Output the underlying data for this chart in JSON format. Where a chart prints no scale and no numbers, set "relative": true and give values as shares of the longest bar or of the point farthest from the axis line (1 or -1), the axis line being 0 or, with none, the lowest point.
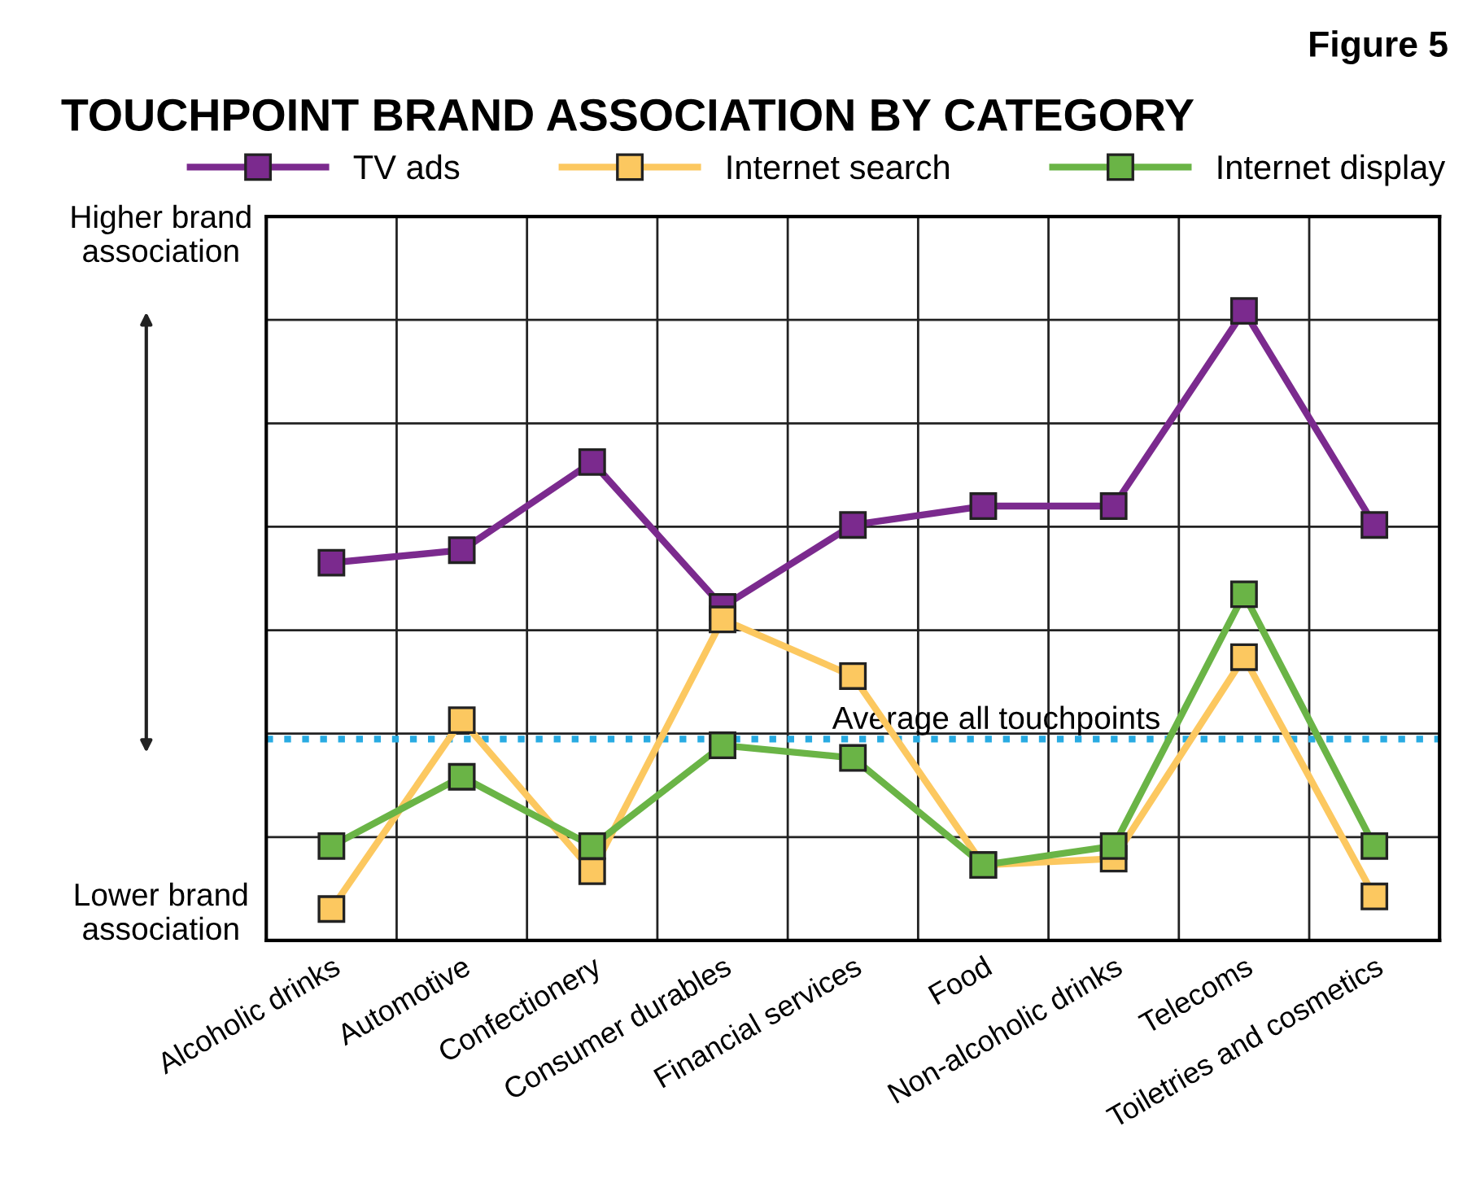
{
  "chart_data": {
    "type": "line",
    "title": "TOUCHPOINT BRAND ASSOCIATION BY CATEGORY",
    "relative": true,
    "categories": [
      "Alcoholic drinks",
      "Automotive",
      "Confectionery",
      "Consumer durables",
      "Financial services",
      "Food",
      "Non-alcoholic drinks",
      "Telecoms",
      "Toiletries and cosmetics"
    ],
    "series": [
      {
        "name": "TV ads",
        "color": "#7b2a8e",
        "values": [
          0.6,
          0.62,
          0.76,
          0.53,
          0.66,
          0.69,
          0.69,
          1,
          0.66
        ]
      },
      {
        "name": "Internet search",
        "color": "#fcc860",
        "values": [
          0.05,
          0.35,
          0.11,
          0.51,
          0.42,
          0.12,
          0.13,
          0.45,
          0.07
        ]
      },
      {
        "name": "Internet display",
        "color": "#6ab446",
        "values": [
          0.15,
          0.26,
          0.15,
          0.31,
          0.29,
          0.12,
          0.15,
          0.55,
          0.15
        ]
      }
    ],
    "ref_lines": [
      {
        "axis": "y",
        "value": 0.32,
        "label": "Average all touchpoints",
        "color": "#29abe2",
        "line_style": "dotted"
      }
    ],
    "marker": "square",
    "line_style": "solid",
    "grid": true,
    "legend": "top",
    "annotations": [
      "Figure 5",
      "Higher brand association",
      "Lower brand association"
    ]
  }
}
